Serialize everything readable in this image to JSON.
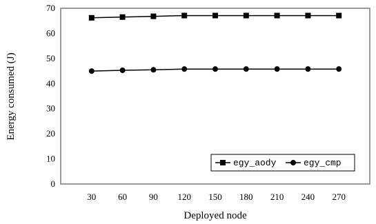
{
  "chart_data": {
    "type": "line",
    "title": "",
    "xlabel": "Deployed node",
    "ylabel": "Energy consumed (J)",
    "x": [
      30,
      60,
      90,
      120,
      150,
      180,
      210,
      240,
      270
    ],
    "x_tick_labels": [
      "30",
      "60",
      "90",
      "120",
      "150",
      "180",
      "210",
      "240",
      "270"
    ],
    "ylim": [
      0,
      70
    ],
    "y_ticks": [
      0,
      10,
      20,
      30,
      40,
      50,
      60,
      70
    ],
    "y_tick_labels": [
      "0",
      "10",
      "20",
      "30",
      "40",
      "50",
      "60",
      "70"
    ],
    "grid": false,
    "legend_position": "bottom-right",
    "series": [
      {
        "name": "egy_aody",
        "marker": "square",
        "color": "#000000",
        "values": [
          66.2,
          66.5,
          66.8,
          67.1,
          67.1,
          67.1,
          67.1,
          67.1,
          67.1
        ]
      },
      {
        "name": "egy_cmp",
        "marker": "circle",
        "color": "#000000",
        "values": [
          45.0,
          45.3,
          45.5,
          45.8,
          45.8,
          45.8,
          45.8,
          45.8,
          45.8
        ]
      }
    ]
  }
}
